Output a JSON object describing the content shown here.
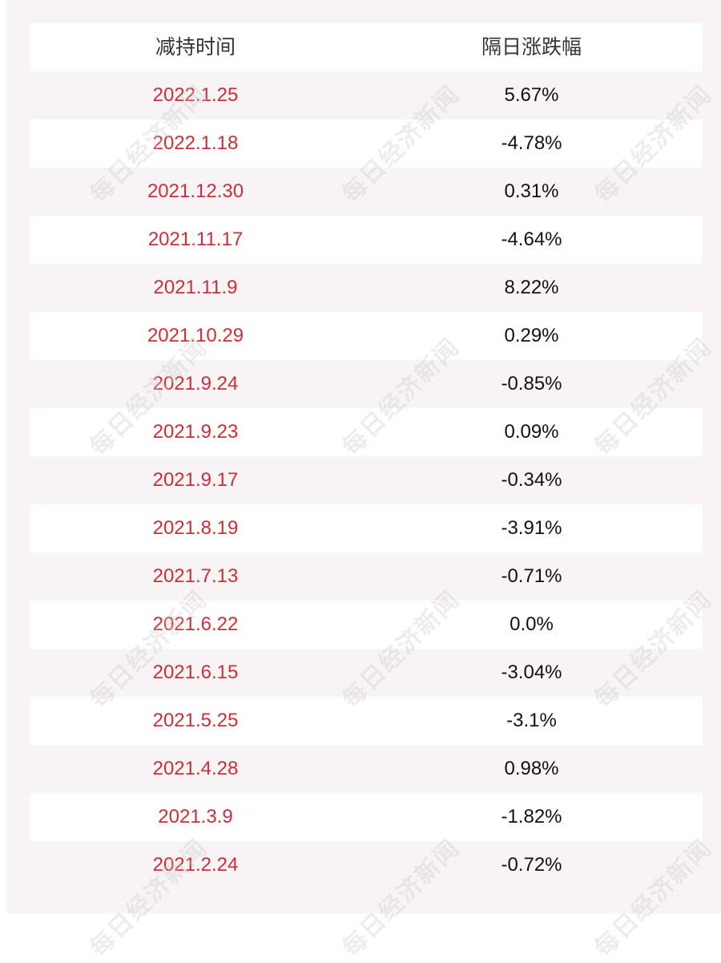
{
  "table": {
    "headers": [
      "减持时间",
      "隔日涨跌幅"
    ],
    "rows": [
      {
        "date": "2022.1.25",
        "change": "5.67%"
      },
      {
        "date": "2022.1.18",
        "change": "-4.78%"
      },
      {
        "date": "2021.12.30",
        "change": "0.31%"
      },
      {
        "date": "2021.11.17",
        "change": "-4.64%"
      },
      {
        "date": "2021.11.9",
        "change": "8.22%"
      },
      {
        "date": "2021.10.29",
        "change": "0.29%"
      },
      {
        "date": "2021.9.24",
        "change": "-0.85%"
      },
      {
        "date": "2021.9.23",
        "change": "0.09%"
      },
      {
        "date": "2021.9.17",
        "change": "-0.34%"
      },
      {
        "date": "2021.8.19",
        "change": "-3.91%"
      },
      {
        "date": "2021.7.13",
        "change": "-0.71%"
      },
      {
        "date": "2021.6.22",
        "change": "0.0%"
      },
      {
        "date": "2021.6.15",
        "change": "-3.04%"
      },
      {
        "date": "2021.5.25",
        "change": "-3.1%"
      },
      {
        "date": "2021.4.28",
        "change": "0.98%"
      },
      {
        "date": "2021.3.9",
        "change": "-1.82%"
      },
      {
        "date": "2021.2.24",
        "change": "-0.72%"
      }
    ]
  },
  "watermark": "每日经济新闻",
  "colors": {
    "date_text": "#c8303a",
    "value_text": "#111111",
    "header_text": "#333333",
    "background": "#f8f4f5"
  }
}
